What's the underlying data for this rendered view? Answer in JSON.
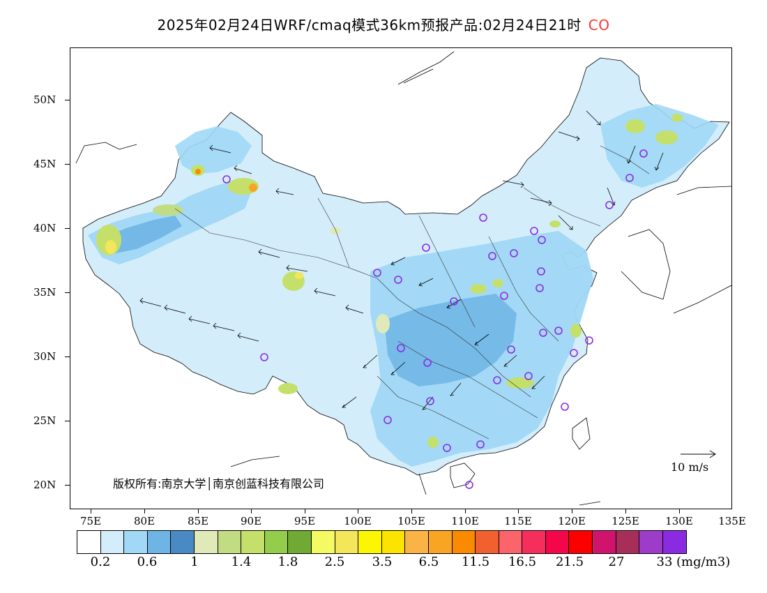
{
  "title": {
    "main": "2025年02月24日WRF/cmaq模式36km预报产品:02月24日21时",
    "pollutant": "CO"
  },
  "map": {
    "lat_labels": [
      "50N",
      "45N",
      "40N",
      "35N",
      "30N",
      "25N",
      "20N"
    ],
    "lon_labels": [
      "75E",
      "80E",
      "85E",
      "90E",
      "95E",
      "100E",
      "105E",
      "110E",
      "115E",
      "120E",
      "125E",
      "130E",
      "135E"
    ],
    "copyright": "版权所有:南京大学│南京创蓝科技有限公司",
    "wind_scale_label": "10 m/s"
  },
  "legend": {
    "colors": [
      "#ffffff",
      "#d4edfb",
      "#a0d8f5",
      "#6eb4e4",
      "#4a8ac4",
      "#dfeab8",
      "#c2dc83",
      "#c4e06a",
      "#94cc4c",
      "#70aa34",
      "#f4fb62",
      "#f4e65a",
      "#fcf600",
      "#fce400",
      "#fab446",
      "#faa424",
      "#fa8a00",
      "#f26030",
      "#fc646c",
      "#f62e5c",
      "#f4064a",
      "#fc0000",
      "#d0146e",
      "#a82e5a",
      "#9c3cc8",
      "#8a2be2"
    ],
    "labels": [
      "0.2",
      "0.6",
      "1",
      "1.4",
      "1.8",
      "2.5",
      "3.5",
      "6.5",
      "11.5",
      "16.5",
      "21.5",
      "27",
      "33"
    ],
    "unit": "(mg/m3)"
  }
}
